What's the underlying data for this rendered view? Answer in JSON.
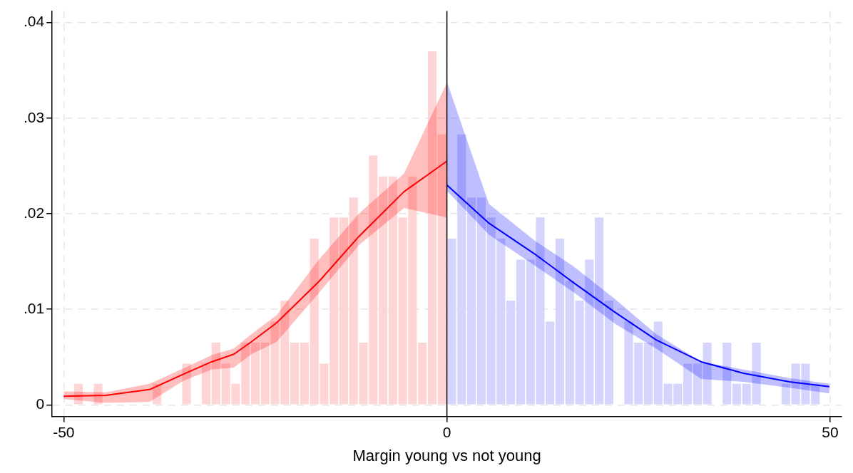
{
  "chart_data": {
    "type": "histogram",
    "xlabel": "Margin young vs not young",
    "xlim": [
      -51.5,
      51.5
    ],
    "xticks": [
      -50,
      0,
      50
    ],
    "ylim": [
      -0.0012,
      0.0412
    ],
    "yticks": [
      0,
      {
        "value": 0.01,
        "label": ".01"
      },
      {
        "value": 0.02,
        "label": ".02"
      },
      {
        "value": 0.03,
        "label": ".03"
      },
      {
        "value": 0.04,
        "label": ".04"
      }
    ],
    "grid": true,
    "legend": false,
    "ref_lines": [
      {
        "axis": "x",
        "value": 0,
        "color": "#000000"
      }
    ],
    "series": [
      {
        "color": "#ffd4d4",
        "bins": [
          -48.72,
          -47.43,
          -46.15,
          -44.87,
          -43.59,
          -42.31,
          -41.02,
          -39.74,
          -38.46,
          -37.18,
          -35.9,
          -34.61,
          -33.33,
          -32.05,
          -30.77,
          -29.49,
          -28.2,
          -26.92,
          -25.64,
          -24.36,
          -23.08,
          -21.79,
          -20.51,
          -19.23,
          -17.95,
          -16.67,
          -15.38,
          -14.1,
          -12.82,
          -11.54,
          -10.26,
          -8.97,
          -7.69,
          -6.41,
          -5.13,
          -3.85,
          -2.56,
          -1.28,
          0
        ],
        "values": [
          0.0022,
          0,
          0.0022,
          0,
          0,
          0,
          0,
          0,
          0.0022,
          0,
          0,
          0.0043,
          0,
          0.0043,
          0.0065,
          0.0043,
          0.0022,
          0.0065,
          0.0065,
          0.0065,
          0.0087,
          0.0109,
          0.0065,
          0.0065,
          0.0174,
          0.0043,
          0.0196,
          0.0196,
          0.0217,
          0.0065,
          0.0261,
          0.0239,
          0.0239,
          0.0196,
          0.0239,
          0.0065,
          0.037,
          0.0283
        ]
      },
      {
        "color": "#d4d4fd",
        "bins": [
          0,
          1.28,
          2.56,
          3.85,
          5.13,
          6.41,
          7.69,
          8.97,
          10.26,
          11.54,
          12.82,
          14.1,
          15.38,
          16.67,
          17.95,
          19.23,
          20.51,
          21.79,
          23.08,
          24.36,
          25.64,
          26.92,
          28.2,
          29.49,
          30.77,
          32.05,
          33.33,
          34.61,
          35.9,
          37.18,
          38.46,
          39.74,
          41.02,
          42.31,
          43.59,
          44.87,
          46.15,
          47.43,
          48.72
        ],
        "values": [
          0.0174,
          0.0283,
          0.0217,
          0.0217,
          0.0196,
          0.0174,
          0.0109,
          0.0152,
          0.0152,
          0.0196,
          0.0087,
          0.0174,
          0.013,
          0.0109,
          0.0152,
          0.0196,
          0.0109,
          0,
          0.0087,
          0.0065,
          0.0065,
          0.0087,
          0.0022,
          0.0022,
          0.0043,
          0.0043,
          0.0065,
          0,
          0.0065,
          0.0022,
          0.0022,
          0.0065,
          0,
          0,
          0.0022,
          0.0043,
          0.0043,
          0.0022
        ]
      },
      {
        "type": "line",
        "color": "#ff0000",
        "x": [
          -50,
          -44.5,
          -38.8,
          -34.4,
          -30.7,
          -27.8,
          -25.5,
          -22.2,
          -16.7,
          -11.5,
          -5.6,
          0
        ],
        "values": [
          0.0009,
          0.001,
          0.0016,
          0.0032,
          0.0045,
          0.0053,
          0.0066,
          0.0086,
          0.0129,
          0.0176,
          0.0223,
          0.0255
        ],
        "lower": [
          0.0006,
          0.0002,
          0.0003,
          0.0025,
          0.0037,
          0.0039,
          0.0053,
          0.0066,
          0.0117,
          0.0167,
          0.0206,
          0.0196
        ],
        "upper": [
          0.0014,
          0.0013,
          0.0022,
          0.0038,
          0.0052,
          0.0059,
          0.0074,
          0.0094,
          0.0152,
          0.02,
          0.0242,
          0.0337
        ]
      },
      {
        "type": "line",
        "color": "#0000ff",
        "x": [
          0,
          5.5,
          11.6,
          16.5,
          21.9,
          27.3,
          33.2,
          38.7,
          44.7,
          49.9
        ],
        "values": [
          0.023,
          0.019,
          0.0157,
          0.0128,
          0.0097,
          0.0068,
          0.0045,
          0.0033,
          0.0024,
          0.0019
        ],
        "lower": [
          0.0224,
          0.0178,
          0.0145,
          0.0118,
          0.0085,
          0.0059,
          0.0027,
          0.0024,
          0.0018,
          0.0012
        ],
        "upper": [
          0.0338,
          0.021,
          0.0171,
          0.0145,
          0.0111,
          0.0074,
          0.0045,
          0.0037,
          0.0028,
          0.0022
        ]
      }
    ]
  }
}
